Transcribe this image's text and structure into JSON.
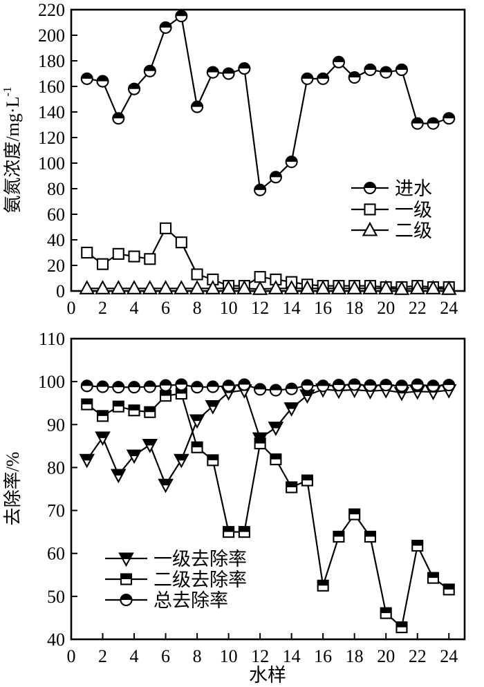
{
  "colors": {
    "line": "#000000",
    "background": "#ffffff"
  },
  "chart_data": [
    {
      "id": "top",
      "type": "line",
      "title": "",
      "xlabel": "",
      "ylabel": "氨氮浓度/mg·L⁻¹",
      "xlim": [
        0,
        25
      ],
      "ylim": [
        0,
        220
      ],
      "xticks": [
        0,
        2,
        4,
        6,
        8,
        10,
        12,
        14,
        16,
        18,
        20,
        22,
        24
      ],
      "yticks": [
        0,
        20,
        40,
        60,
        80,
        100,
        120,
        140,
        160,
        180,
        200,
        220
      ],
      "grid": false,
      "legend_position": "inside-right-middle",
      "x": [
        1,
        2,
        3,
        4,
        5,
        6,
        7,
        8,
        9,
        10,
        11,
        12,
        13,
        14,
        15,
        16,
        17,
        18,
        19,
        20,
        21,
        22,
        23,
        24
      ],
      "series": [
        {
          "name": "进水",
          "marker": "circle-half",
          "values": [
            166,
            164,
            135,
            158,
            172,
            206,
            215,
            144,
            171,
            170,
            174,
            79,
            89,
            101,
            166,
            166,
            179,
            167,
            173,
            171,
            173,
            131,
            131,
            135
          ]
        },
        {
          "name": "一级",
          "marker": "square-open",
          "values": [
            30,
            21,
            29,
            27,
            25,
            49,
            38,
            13,
            9,
            4,
            4,
            11,
            9,
            7,
            5,
            4,
            4,
            4,
            4,
            3,
            3,
            4,
            3,
            3
          ]
        },
        {
          "name": "二级",
          "marker": "triangle-up-open",
          "values": [
            2,
            2,
            2,
            2,
            2,
            2,
            2,
            2,
            2,
            2,
            2,
            1.5,
            2,
            2,
            2,
            2,
            2,
            2,
            2,
            2,
            1.5,
            2,
            2,
            1.5
          ]
        }
      ]
    },
    {
      "id": "bottom",
      "type": "line",
      "title": "",
      "xlabel": "水样",
      "ylabel": "去除率/%",
      "xlim": [
        0,
        25
      ],
      "ylim": [
        40,
        110
      ],
      "xticks": [
        0,
        2,
        4,
        6,
        8,
        10,
        12,
        14,
        16,
        18,
        20,
        22,
        24
      ],
      "yticks": [
        40,
        50,
        60,
        70,
        80,
        90,
        100,
        110
      ],
      "grid": false,
      "legend_position": "inside-left-bottom",
      "x": [
        1,
        2,
        3,
        4,
        5,
        6,
        7,
        8,
        9,
        10,
        11,
        12,
        13,
        14,
        15,
        16,
        17,
        18,
        19,
        20,
        21,
        22,
        23,
        24
      ],
      "series": [
        {
          "name": "一级去除率",
          "marker": "triangle-down-half",
          "values": [
            81.8,
            87,
            78.3,
            82.8,
            85.3,
            76,
            81.8,
            91,
            94.3,
            97.5,
            98,
            86.8,
            89.3,
            93.8,
            96.8,
            98.2,
            97.9,
            98.1,
            97.8,
            98,
            97.4,
            97.7,
            97.6,
            98
          ]
        },
        {
          "name": "二级去除率",
          "marker": "square-half",
          "values": [
            94.7,
            92,
            94.2,
            93.3,
            92.9,
            96.7,
            97.2,
            84.7,
            81.7,
            65,
            65,
            85.6,
            81.9,
            75.4,
            77,
            52.5,
            63.9,
            69.1,
            63.9,
            46.1,
            42.8,
            61.8,
            54.3,
            51.6
          ]
        },
        {
          "name": "总去除率",
          "marker": "circle-half",
          "values": [
            99,
            98.8,
            98.7,
            98.7,
            98.8,
            99.1,
            99.3,
            98.7,
            98.8,
            99,
            99.3,
            98.2,
            98,
            98.3,
            99.1,
            99,
            99.2,
            99.3,
            99.1,
            99.2,
            99,
            99.3,
            99,
            99.2
          ]
        }
      ]
    }
  ]
}
